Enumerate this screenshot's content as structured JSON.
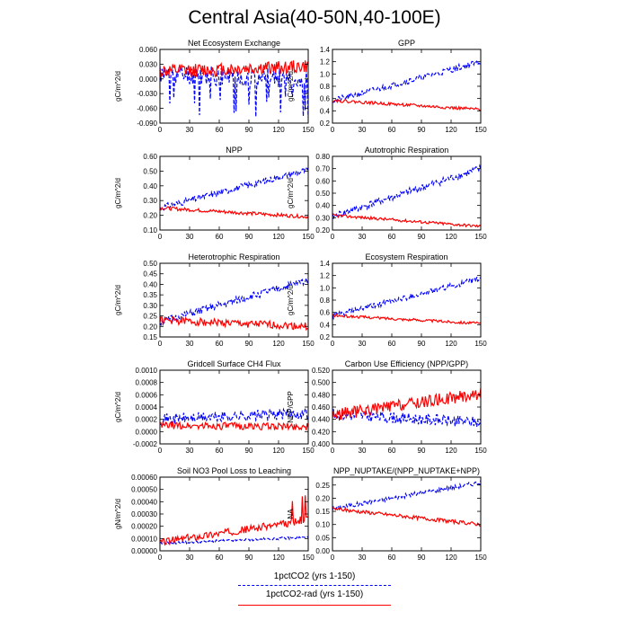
{
  "title": "Central Asia(40-50N,40-100E)",
  "legend": [
    {
      "label": "1pctCO2 (yrs 1-150)",
      "color": "#0000ff",
      "style": "dashed"
    },
    {
      "label": "1pctCO2-rad (yrs 1-150)",
      "color": "#ff0000",
      "style": "solid"
    }
  ],
  "chart_data": [
    {
      "type": "line",
      "title": "Net Ecosystem Exchange",
      "ylabel": "gC/m^2/d",
      "xlim": [
        0,
        150
      ],
      "ylim": [
        -0.09,
        0.06
      ],
      "xticks": [
        0,
        30,
        60,
        90,
        120,
        150
      ],
      "yticks": [
        0.06,
        0.03,
        0.0,
        -0.03,
        -0.06,
        -0.09
      ],
      "ytick_labels": [
        "0.060",
        "0.030",
        "0.000",
        "-0.030",
        "-0.060",
        "-0.090"
      ],
      "series": [
        {
          "name": "1pctCO2 (yrs 1-150)",
          "color": "#0000ff",
          "dash": true,
          "start": 0.01,
          "end": 0.0,
          "noise": 0.02,
          "dips": -0.08,
          "seed": 11
        },
        {
          "name": "1pctCO2-rad (yrs 1-150)",
          "color": "#ff0000",
          "dash": false,
          "start": 0.015,
          "end": 0.025,
          "noise": 0.014,
          "seed": 12
        }
      ]
    },
    {
      "type": "line",
      "title": "GPP",
      "ylabel": "gC/m^2/d",
      "xlim": [
        0,
        150
      ],
      "ylim": [
        0.2,
        1.4
      ],
      "xticks": [
        0,
        30,
        60,
        90,
        120,
        150
      ],
      "yticks": [
        1.4,
        1.2,
        1.0,
        0.8,
        0.6,
        0.4,
        0.2
      ],
      "ytick_labels": [
        "1.4",
        "1.2",
        "1.0",
        "0.8",
        "0.6",
        "0.4",
        "0.2"
      ],
      "series": [
        {
          "name": "1pctCO2 (yrs 1-150)",
          "color": "#0000ff",
          "dash": true,
          "start": 0.56,
          "end": 1.2,
          "noise": 0.05,
          "seed": 21
        },
        {
          "name": "1pctCO2-rad (yrs 1-150)",
          "color": "#ff0000",
          "dash": false,
          "start": 0.57,
          "end": 0.42,
          "noise": 0.025,
          "seed": 22
        }
      ]
    },
    {
      "type": "line",
      "title": "NPP",
      "ylabel": "gC/m^2/d",
      "xlim": [
        0,
        150
      ],
      "ylim": [
        0.1,
        0.6
      ],
      "xticks": [
        0,
        30,
        60,
        90,
        120,
        150
      ],
      "yticks": [
        0.6,
        0.5,
        0.4,
        0.3,
        0.2,
        0.1
      ],
      "ytick_labels": [
        "0.60",
        "0.50",
        "0.40",
        "0.30",
        "0.20",
        "0.10"
      ],
      "series": [
        {
          "name": "1pctCO2 (yrs 1-150)",
          "color": "#0000ff",
          "dash": true,
          "start": 0.25,
          "end": 0.51,
          "noise": 0.022,
          "seed": 31
        },
        {
          "name": "1pctCO2-rad (yrs 1-150)",
          "color": "#ff0000",
          "dash": false,
          "start": 0.25,
          "end": 0.19,
          "noise": 0.012,
          "seed": 32
        }
      ]
    },
    {
      "type": "line",
      "title": "Autotrophic Respiration",
      "ylabel": "gC/m^2/d",
      "xlim": [
        0,
        150
      ],
      "ylim": [
        0.2,
        0.8
      ],
      "xticks": [
        0,
        30,
        60,
        90,
        120,
        150
      ],
      "yticks": [
        0.8,
        0.7,
        0.6,
        0.5,
        0.4,
        0.3,
        0.2
      ],
      "ytick_labels": [
        "0.80",
        "0.70",
        "0.60",
        "0.50",
        "0.40",
        "0.30",
        "0.20"
      ],
      "series": [
        {
          "name": "1pctCO2 (yrs 1-150)",
          "color": "#0000ff",
          "dash": true,
          "start": 0.31,
          "end": 0.7,
          "noise": 0.03,
          "seed": 41
        },
        {
          "name": "1pctCO2-rad (yrs 1-150)",
          "color": "#ff0000",
          "dash": false,
          "start": 0.32,
          "end": 0.23,
          "noise": 0.012,
          "seed": 42
        }
      ]
    },
    {
      "type": "line",
      "title": "Heterotrophic Respiration",
      "ylabel": "gC/m^2/d",
      "xlim": [
        0,
        150
      ],
      "ylim": [
        0.15,
        0.5
      ],
      "xticks": [
        0,
        30,
        60,
        90,
        120,
        150
      ],
      "yticks": [
        0.5,
        0.45,
        0.4,
        0.35,
        0.3,
        0.25,
        0.2,
        0.15
      ],
      "ytick_labels": [
        "0.50",
        "0.45",
        "0.40",
        "0.35",
        "0.30",
        "0.25",
        "0.20",
        "0.15"
      ],
      "series": [
        {
          "name": "1pctCO2 (yrs 1-150)",
          "color": "#0000ff",
          "dash": true,
          "start": 0.22,
          "end": 0.42,
          "noise": 0.018,
          "seed": 51
        },
        {
          "name": "1pctCO2-rad (yrs 1-150)",
          "color": "#ff0000",
          "dash": false,
          "start": 0.23,
          "end": 0.2,
          "noise": 0.018,
          "seed": 52
        }
      ]
    },
    {
      "type": "line",
      "title": "Ecosystem Respiration",
      "ylabel": "gC/m^2/d",
      "xlim": [
        0,
        150
      ],
      "ylim": [
        0.2,
        1.4
      ],
      "xticks": [
        0,
        30,
        60,
        90,
        120,
        150
      ],
      "yticks": [
        1.4,
        1.2,
        1.0,
        0.8,
        0.6,
        0.4,
        0.2
      ],
      "ytick_labels": [
        "1.4",
        "1.2",
        "1.0",
        "0.8",
        "0.6",
        "0.4",
        "0.2"
      ],
      "series": [
        {
          "name": "1pctCO2 (yrs 1-150)",
          "color": "#0000ff",
          "dash": true,
          "start": 0.54,
          "end": 1.15,
          "noise": 0.045,
          "seed": 61
        },
        {
          "name": "1pctCO2-rad (yrs 1-150)",
          "color": "#ff0000",
          "dash": false,
          "start": 0.55,
          "end": 0.42,
          "noise": 0.022,
          "seed": 62
        }
      ]
    },
    {
      "type": "line",
      "title": "Gridcell Surface CH4 Flux",
      "ylabel": "gC/m^2/d",
      "xlim": [
        0,
        150
      ],
      "ylim": [
        -0.0002,
        0.001
      ],
      "xticks": [
        0,
        30,
        60,
        90,
        120,
        150
      ],
      "yticks": [
        0.001,
        0.0008,
        0.0006,
        0.0004,
        0.0002,
        0.0,
        -0.0002
      ],
      "ytick_labels": [
        "0.0010",
        "0.0008",
        "0.0006",
        "0.0004",
        "0.0002",
        "0.0000",
        "-0.0002"
      ],
      "series": [
        {
          "name": "1pctCO2 (yrs 1-150)",
          "color": "#0000ff",
          "dash": true,
          "start": 0.0002,
          "end": 0.0003,
          "noise": 9e-05,
          "seed": 71
        },
        {
          "name": "1pctCO2-rad (yrs 1-150)",
          "color": "#ff0000",
          "dash": false,
          "start": 0.0001,
          "end": 8e-05,
          "noise": 6e-05,
          "seed": 72
        }
      ]
    },
    {
      "type": "line",
      "title": "Carbon Use Efficiency (NPP/GPP)",
      "ylabel": "NPP/GPP",
      "xlim": [
        0,
        150
      ],
      "ylim": [
        0.4,
        0.52
      ],
      "xticks": [
        0,
        30,
        60,
        90,
        120,
        150
      ],
      "yticks": [
        0.52,
        0.5,
        0.48,
        0.46,
        0.44,
        0.42,
        0.4
      ],
      "ytick_labels": [
        "0.520",
        "0.500",
        "0.480",
        "0.460",
        "0.440",
        "0.420",
        "0.400"
      ],
      "series": [
        {
          "name": "1pctCO2 (yrs 1-150)",
          "color": "#0000ff",
          "dash": true,
          "start": 0.448,
          "end": 0.435,
          "noise": 0.009,
          "seed": 81
        },
        {
          "name": "1pctCO2-rad (yrs 1-150)",
          "color": "#ff0000",
          "dash": false,
          "start": 0.447,
          "end": 0.482,
          "noise": 0.01,
          "seed": 82
        }
      ]
    },
    {
      "type": "line",
      "title": "Soil NO3 Pool Loss to Leaching",
      "ylabel": "gN/m^2/d",
      "xlim": [
        0,
        150
      ],
      "ylim": [
        0,
        0.0006
      ],
      "xticks": [
        0,
        30,
        60,
        90,
        120,
        150
      ],
      "yticks": [
        0.0006,
        0.0005,
        0.0004,
        0.0003,
        0.0002,
        0.0001,
        0.0
      ],
      "ytick_labels": [
        "0.00060",
        "0.00050",
        "0.00040",
        "0.00030",
        "0.00020",
        "0.00010",
        "0.00000"
      ],
      "series": [
        {
          "name": "1pctCO2 (yrs 1-150)",
          "color": "#0000ff",
          "dash": true,
          "start": 6e-05,
          "end": 0.00011,
          "noise": 1e-05,
          "seed": 91
        },
        {
          "name": "1pctCO2-rad (yrs 1-150)",
          "color": "#ff0000",
          "dash": false,
          "start": 7e-05,
          "end": 0.00025,
          "noise": 3e-05,
          "spikes": 0.0005,
          "seed": 92
        }
      ]
    },
    {
      "type": "line",
      "title": "NPP_NUPTAKE/(NPP_NUPTAKE+NPP)",
      "ylabel": "NA",
      "xlim": [
        0,
        150
      ],
      "ylim": [
        0,
        0.28
      ],
      "xticks": [
        0,
        30,
        60,
        90,
        120,
        150
      ],
      "yticks": [
        0.25,
        0.2,
        0.15,
        0.1,
        0.05,
        0.0
      ],
      "ytick_labels": [
        "0.25",
        "0.20",
        "0.15",
        "0.10",
        "0.05",
        "0.00"
      ],
      "series": [
        {
          "name": "1pctCO2 (yrs 1-150)",
          "color": "#0000ff",
          "dash": true,
          "start": 0.16,
          "end": 0.26,
          "noise": 0.008,
          "seed": 101
        },
        {
          "name": "1pctCO2-rad (yrs 1-150)",
          "color": "#ff0000",
          "dash": false,
          "start": 0.16,
          "end": 0.1,
          "noise": 0.007,
          "seed": 102
        }
      ]
    }
  ]
}
